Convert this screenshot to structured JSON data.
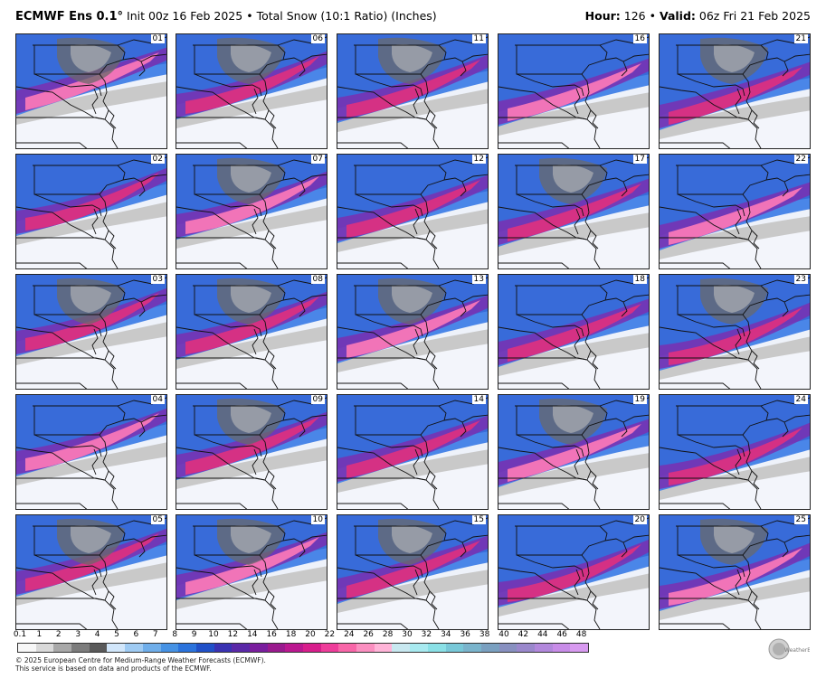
{
  "header": {
    "model": "ECMWF Ens 0.1°",
    "init": "Init 00z 16 Feb 2025",
    "product": "Total Snow (10:1 Ratio) (Inches)",
    "hour_label": "Hour:",
    "hour": "126",
    "valid_label": "Valid:",
    "valid": "06z Fri 21 Feb 2025",
    "separator": "•"
  },
  "members": [
    [
      "01",
      "06",
      "11",
      "16",
      "21"
    ],
    [
      "02",
      "07",
      "12",
      "17",
      "22"
    ],
    [
      "03",
      "08",
      "13",
      "18",
      "23"
    ],
    [
      "04",
      "09",
      "14",
      "19",
      "24"
    ],
    [
      "05",
      "10",
      "15",
      "20",
      "25"
    ]
  ],
  "colorbar": {
    "labels": [
      "0.1",
      "1",
      "2",
      "3",
      "4",
      "5",
      "6",
      "7",
      "8",
      "9",
      "10",
      "12",
      "14",
      "16",
      "18",
      "20",
      "22",
      "24",
      "26",
      "28",
      "30",
      "32",
      "34",
      "36",
      "38",
      "40",
      "42",
      "44",
      "46",
      "48"
    ],
    "colors": [
      "#f7f7f7",
      "#d9d9d9",
      "#a8a8a8",
      "#7c7c7c",
      "#5a5a5a",
      "#d2e7fb",
      "#9fcbf3",
      "#6faeea",
      "#4692e4",
      "#2b73dc",
      "#2050c8",
      "#3a32b2",
      "#5a28a8",
      "#7a1e9e",
      "#9a1a8e",
      "#bb1890",
      "#d81e8c",
      "#ee3d9a",
      "#f866a8",
      "#fb8fc0",
      "#ffb4d8",
      "#c8e8f0",
      "#a8eaf0",
      "#8ae0e6",
      "#78c8d8",
      "#7ab4cc",
      "#7aa0c0",
      "#8890c0",
      "#9a88cc",
      "#b288dc",
      "#c88ce8",
      "#d89af0"
    ]
  },
  "credit": {
    "line1": "© 2025 European Centre for Medium-Range Weather Forecasts (ECMWF).",
    "line2": "This service is based on data and products of the ECMWF."
  },
  "logo_text": "WeatherBELL",
  "colors": {
    "gray_dark": "#6a6a6a",
    "gray_light": "#bdbdbd",
    "blue": "#4a86e8",
    "blue_dark": "#2a55cc",
    "purple": "#7a2fb0",
    "magenta": "#e0307e",
    "pink": "#ff7ab8",
    "bg": "#f1f4fb"
  }
}
